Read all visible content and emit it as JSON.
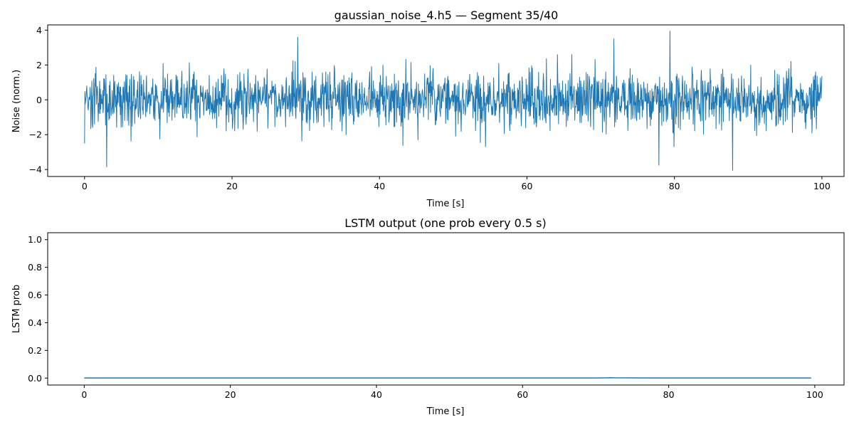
{
  "chart_data": [
    {
      "type": "line",
      "title": "gaussian_noise_4.h5 — Segment 35/40",
      "xlabel": "Time [s]",
      "ylabel": "Noise (norm.)",
      "xlim": [
        -5,
        103
      ],
      "ylim": [
        -4.4,
        4.3
      ],
      "xticks": [
        0,
        20,
        40,
        60,
        80,
        100
      ],
      "yticks": [
        -4,
        -2,
        0,
        2,
        4
      ],
      "ytick_labels": [
        "−4",
        "−2",
        "0",
        "2",
        "4"
      ],
      "grid": false,
      "series": [
        {
          "color": "#1f77b4",
          "description": "Gaussian noise signal, approx. mean 0, std 0.8, sampled densely over 0–100 s",
          "x_start": 0,
          "x_end": 100,
          "n_points": 2000,
          "mean": 0,
          "std": 0.8,
          "extremes": [
            {
              "x": 3.0,
              "y": -3.85
            },
            {
              "x": 28.9,
              "y": 3.6
            },
            {
              "x": 71.8,
              "y": 3.5
            },
            {
              "x": 79.4,
              "y": 3.95
            },
            {
              "x": 87.9,
              "y": -4.05
            },
            {
              "x": 77.9,
              "y": -3.75
            }
          ]
        }
      ]
    },
    {
      "type": "line",
      "title": "LSTM output (one prob every 0.5 s)",
      "xlabel": "Time [s]",
      "ylabel": "LSTM prob",
      "xlim": [
        -5,
        104
      ],
      "ylim": [
        -0.05,
        1.05
      ],
      "xticks": [
        0,
        20,
        40,
        60,
        80,
        100
      ],
      "yticks": [
        0.0,
        0.2,
        0.4,
        0.6,
        0.8,
        1.0
      ],
      "ytick_labels": [
        "0.0",
        "0.2",
        "0.4",
        "0.6",
        "0.8",
        "1.0"
      ],
      "grid": false,
      "series": [
        {
          "color": "#1f77b4",
          "x": [
            0,
            10,
            20,
            30,
            40,
            50,
            60,
            70,
            71.5,
            72,
            72.5,
            80,
            90,
            99.5
          ],
          "values": [
            0.001,
            0.001,
            0.001,
            0.001,
            0.001,
            0.001,
            0.001,
            0.001,
            0.002,
            0.003,
            0.002,
            0.001,
            0.001,
            0.001
          ]
        }
      ]
    }
  ]
}
